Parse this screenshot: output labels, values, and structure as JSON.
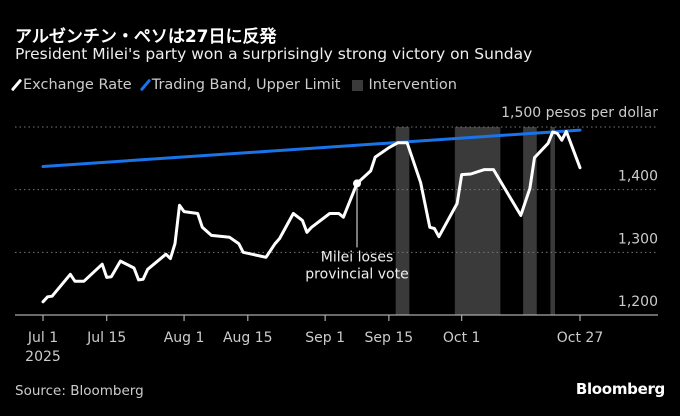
{
  "header": {
    "title": "アルゼンチン・ペソは27日に反発",
    "subtitle": "President Milei's party won a surprisingly strong victory on Sunday"
  },
  "legend": [
    {
      "label": "Exchange Rate",
      "color": "#ffffff",
      "kind": "line"
    },
    {
      "label": "Trading Band, Upper Limit",
      "color": "#1a73e8",
      "kind": "line"
    },
    {
      "label": "Intervention",
      "color": "#3a3a3a",
      "kind": "box"
    }
  ],
  "footer": {
    "source": "Source: Bloomberg",
    "logo": "Bloomberg"
  },
  "chart_data": {
    "type": "line",
    "title": "アルゼンチン・ペソは27日に反発",
    "subtitle": "President Milei's party won a surprisingly strong victory on Sunday",
    "unit_label": "1,500 pesos per dollar",
    "ylim": [
      1200,
      1500
    ],
    "xlim": [
      "2025-07-01",
      "2025-10-27"
    ],
    "y_ticks": [
      {
        "value": 1400,
        "label": "1,400"
      },
      {
        "value": 1300,
        "label": "1,300"
      },
      {
        "value": 1200,
        "label": "1,200"
      }
    ],
    "x_ticks": [
      {
        "date": "2025-07-01",
        "label": "Jul 1",
        "sublabel": "2025"
      },
      {
        "date": "2025-07-15",
        "label": "Jul 15"
      },
      {
        "date": "2025-08-01",
        "label": "Aug 1"
      },
      {
        "date": "2025-08-15",
        "label": "Aug 15"
      },
      {
        "date": "2025-09-01",
        "label": "Sep 1"
      },
      {
        "date": "2025-09-15",
        "label": "Sep 15"
      },
      {
        "date": "2025-10-01",
        "label": "Oct 1"
      },
      {
        "date": "2025-10-27",
        "label": "Oct 27"
      }
    ],
    "grid": true,
    "series": [
      {
        "name": "Exchange Rate",
        "color": "#ffffff",
        "points": [
          [
            "2025-07-01",
            1221
          ],
          [
            "2025-07-02",
            1229
          ],
          [
            "2025-07-03",
            1230
          ],
          [
            "2025-07-07",
            1265
          ],
          [
            "2025-07-08",
            1254
          ],
          [
            "2025-07-10",
            1254
          ],
          [
            "2025-07-14",
            1281
          ],
          [
            "2025-07-15",
            1260
          ],
          [
            "2025-07-16",
            1261
          ],
          [
            "2025-07-18",
            1286
          ],
          [
            "2025-07-21",
            1275
          ],
          [
            "2025-07-22",
            1256
          ],
          [
            "2025-07-23",
            1257
          ],
          [
            "2025-07-24",
            1273
          ],
          [
            "2025-07-28",
            1297
          ],
          [
            "2025-07-29",
            1290
          ],
          [
            "2025-07-30",
            1314
          ],
          [
            "2025-07-31",
            1375
          ],
          [
            "2025-08-01",
            1365
          ],
          [
            "2025-08-04",
            1362
          ],
          [
            "2025-08-05",
            1340
          ],
          [
            "2025-08-07",
            1327
          ],
          [
            "2025-08-11",
            1324
          ],
          [
            "2025-08-13",
            1314
          ],
          [
            "2025-08-14",
            1300
          ],
          [
            "2025-08-19",
            1292
          ],
          [
            "2025-08-21",
            1314
          ],
          [
            "2025-08-22",
            1322
          ],
          [
            "2025-08-25",
            1362
          ],
          [
            "2025-08-27",
            1351
          ],
          [
            "2025-08-28",
            1332
          ],
          [
            "2025-08-29",
            1340
          ],
          [
            "2025-09-02",
            1362
          ],
          [
            "2025-09-04",
            1362
          ],
          [
            "2025-09-05",
            1356
          ],
          [
            "2025-09-08",
            1410
          ],
          [
            "2025-09-11",
            1430
          ],
          [
            "2025-09-12",
            1452
          ],
          [
            "2025-09-15",
            1467
          ],
          [
            "2025-09-17",
            1475
          ],
          [
            "2025-09-19",
            1475
          ],
          [
            "2025-09-22",
            1411
          ],
          [
            "2025-09-24",
            1340
          ],
          [
            "2025-09-25",
            1338
          ],
          [
            "2025-09-26",
            1325
          ],
          [
            "2025-09-30",
            1378
          ],
          [
            "2025-10-01",
            1424
          ],
          [
            "2025-10-03",
            1425
          ],
          [
            "2025-10-06",
            1432
          ],
          [
            "2025-10-08",
            1432
          ],
          [
            "2025-10-14",
            1359
          ],
          [
            "2025-10-16",
            1402
          ],
          [
            "2025-10-17",
            1451
          ],
          [
            "2025-10-20",
            1474
          ],
          [
            "2025-10-21",
            1492
          ],
          [
            "2025-10-22",
            1490
          ],
          [
            "2025-10-23",
            1479
          ],
          [
            "2025-10-24",
            1493
          ],
          [
            "2025-10-27",
            1435
          ]
        ]
      },
      {
        "name": "Trading Band, Upper Limit",
        "color": "#1a73e8",
        "points": [
          [
            "2025-07-01",
            1437
          ],
          [
            "2025-10-27",
            1495
          ]
        ]
      }
    ],
    "intervention_periods": [
      [
        "2025-09-17",
        "2025-09-19"
      ],
      [
        "2025-09-30",
        "2025-10-09"
      ],
      [
        "2025-10-15",
        "2025-10-17"
      ],
      [
        "2025-10-21",
        "2025-10-21"
      ]
    ],
    "annotations": [
      {
        "date": "2025-09-08",
        "value": 1410,
        "lines": [
          "Milei loses",
          "provincial vote"
        ]
      }
    ]
  }
}
